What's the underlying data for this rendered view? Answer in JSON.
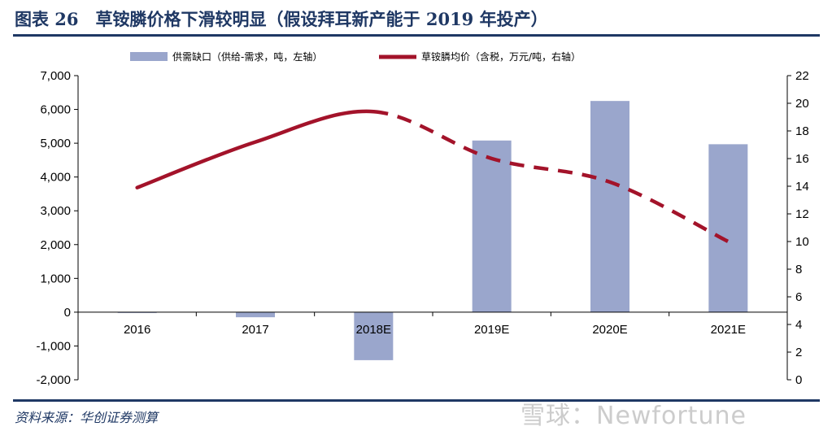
{
  "header": {
    "title": "图表 26　草铵膦价格下滑较明显（假设拜耳新产能于 2019 年投产）"
  },
  "footer": {
    "source": "资料来源：华创证券测算",
    "watermark": "雪球：Newfortune"
  },
  "colors": {
    "title": "#1f3864",
    "bar": "#9aa6cc",
    "line": "#a3132a",
    "axis": "#000000"
  },
  "chart_data": {
    "type": "bar",
    "categories": [
      "2016",
      "2017",
      "2018E",
      "2019E",
      "2020E",
      "2021E"
    ],
    "series": [
      {
        "name": "供需缺口（供给-需求，吨，左轴）",
        "type": "bar",
        "axis": "left",
        "values": [
          -20,
          -150,
          -1420,
          5080,
          6250,
          4970
        ]
      },
      {
        "name": "草铵膦均价（含税，万元/吨，右轴）",
        "type": "line",
        "axis": "right",
        "values": [
          13.9,
          17.2,
          19.4,
          16.0,
          14.3,
          10.0
        ],
        "solid_until_index": 2
      }
    ],
    "y_left": {
      "min": -2000,
      "max": 7000,
      "step": 1000,
      "ticks": [
        "-2,000",
        "-1,000",
        "0",
        "1,000",
        "2,000",
        "3,000",
        "4,000",
        "5,000",
        "6,000",
        "7,000"
      ]
    },
    "y_right": {
      "min": 0,
      "max": 22,
      "step": 2,
      "ticks": [
        "0",
        "2",
        "4",
        "6",
        "8",
        "10",
        "12",
        "14",
        "16",
        "18",
        "20",
        "22"
      ]
    },
    "legend_position": "top",
    "grid": false
  }
}
